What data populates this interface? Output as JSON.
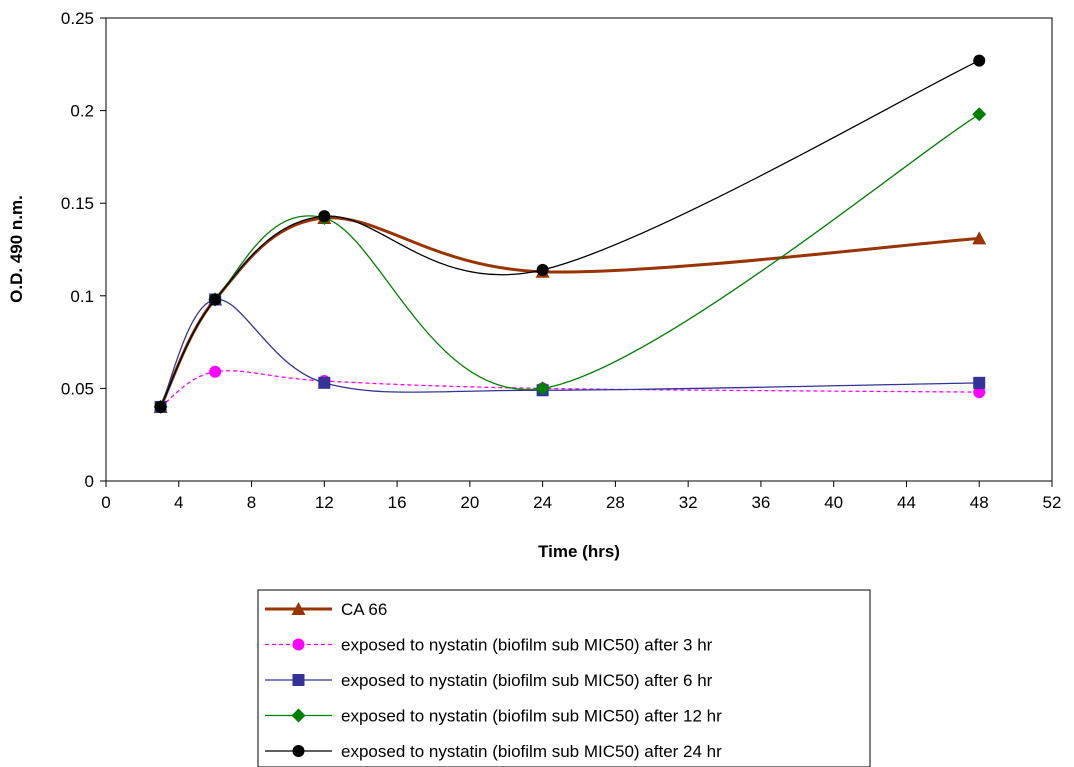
{
  "chart_data": {
    "type": "line",
    "smooth": true,
    "xlabel": "Time (hrs)",
    "ylabel": "O.D. 490 n.m.",
    "xlim": [
      0,
      52
    ],
    "ylim": [
      0,
      0.25
    ],
    "xticks": [
      0,
      4,
      8,
      12,
      16,
      20,
      24,
      28,
      32,
      36,
      40,
      44,
      48,
      52
    ],
    "xtick_labels": [
      "0",
      "4",
      "8",
      "12",
      "16",
      "20",
      "24",
      "28",
      "32",
      "36",
      "40",
      "44",
      "48",
      "52"
    ],
    "yticks": [
      0,
      0.05,
      0.1,
      0.15,
      0.2,
      0.25
    ],
    "ytick_labels": [
      "0",
      "0.05",
      "0.1",
      "0.15",
      "0.2",
      "0.25"
    ],
    "grid": false,
    "legend_position": "bottom",
    "series": [
      {
        "name": "CA 66",
        "x": [
          3,
          6,
          12,
          24,
          48
        ],
        "values": [
          0.04,
          0.098,
          0.142,
          0.113,
          0.131
        ],
        "color": "#993300",
        "marker": "triangle",
        "dash": "solid",
        "width": 3
      },
      {
        "name": "exposed to nystatin (biofilm sub MIC50) after 3 hr",
        "x": [
          3,
          6,
          12,
          24,
          48
        ],
        "values": [
          0.04,
          0.059,
          0.054,
          0.05,
          0.048
        ],
        "color": "#ff00ff",
        "marker": "circle",
        "dash": "dashed",
        "width": 1.3
      },
      {
        "name": "exposed to nystatin (biofilm sub MIC50) after 6 hr",
        "x": [
          3,
          6,
          12,
          24,
          48
        ],
        "values": [
          0.04,
          0.098,
          0.053,
          0.049,
          0.053
        ],
        "color": "#333399",
        "marker": "square",
        "dash": "solid",
        "width": 1.3
      },
      {
        "name": "exposed to nystatin (biofilm sub MIC50) after 12 hr",
        "x": [
          3,
          6,
          12,
          24,
          48
        ],
        "values": [
          0.04,
          0.098,
          0.142,
          0.05,
          0.198
        ],
        "color": "#008000",
        "marker": "diamond",
        "dash": "solid",
        "width": 1.3
      },
      {
        "name": "exposed to nystatin (biofilm sub MIC50) after 24 hr",
        "x": [
          3,
          6,
          12,
          24,
          48
        ],
        "values": [
          0.04,
          0.098,
          0.143,
          0.114,
          0.227
        ],
        "color": "#000000",
        "marker": "circle",
        "dash": "solid",
        "width": 1.3
      }
    ]
  }
}
